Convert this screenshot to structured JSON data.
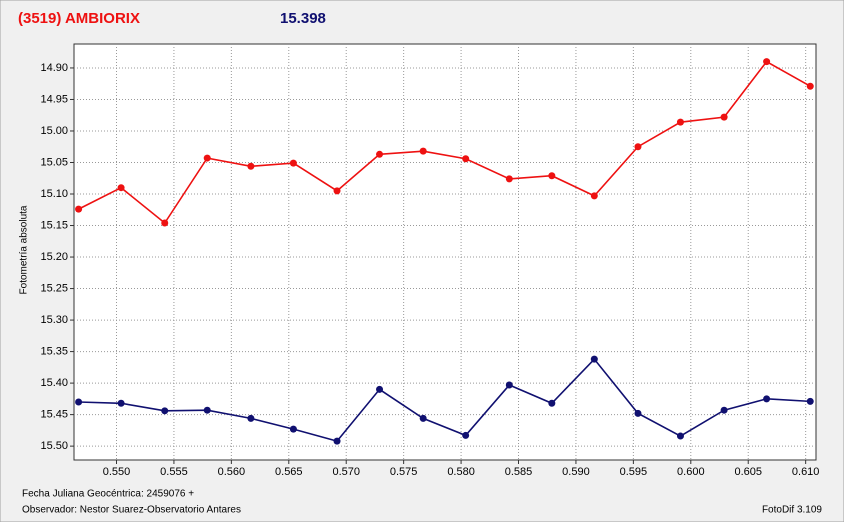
{
  "chart_data": {
    "type": "line",
    "title": "(3519) AMBIORIX",
    "subtitle": "15.398",
    "y_label": "Fotometría absoluta",
    "footer_date": "Fecha Juliana Geocéntrica: 2459076 +",
    "footer_observer": "Observador: Nestor Suarez-Observatorio Antares",
    "footer_software": "FotoDif 3.109",
    "x": [
      0.5467,
      0.5504,
      0.5542,
      0.5579,
      0.5617,
      0.5654,
      0.5692,
      0.5729,
      0.5767,
      0.5804,
      0.5842,
      0.5879,
      0.5916,
      0.5954,
      0.5991,
      0.6029,
      0.6066,
      0.6104
    ],
    "series": [
      {
        "color": "#ee1111",
        "values": [
          15.124,
          15.09,
          15.146,
          15.043,
          15.056,
          15.051,
          15.095,
          15.037,
          15.032,
          15.044,
          15.076,
          15.071,
          15.103,
          15.025,
          14.986,
          14.978,
          14.89,
          14.929
        ]
      },
      {
        "color": "#101070",
        "values": [
          15.43,
          15.432,
          15.444,
          15.443,
          15.456,
          15.473,
          15.492,
          15.41,
          15.456,
          15.483,
          15.403,
          15.432,
          15.362,
          15.448,
          15.484,
          15.443,
          15.425,
          15.429
        ]
      }
    ],
    "xlim": [
      0.5463,
      0.6109
    ],
    "ylim": [
      15.522,
      14.862
    ],
    "xticks": [
      {
        "value": 0.55,
        "label": "0.550"
      },
      0.555,
      {
        "value": 0.56,
        "label": "0.560"
      },
      0.565,
      {
        "value": 0.57,
        "label": "0.570"
      },
      0.575,
      {
        "value": 0.58,
        "label": "0.580"
      },
      0.585,
      {
        "value": 0.59,
        "label": "0.590"
      },
      0.595,
      {
        "value": 0.6,
        "label": "0.600"
      },
      0.605,
      {
        "value": 0.61,
        "label": "0.610"
      }
    ],
    "yticks": [
      {
        "value": 14.9,
        "label": "14.90"
      },
      14.95,
      {
        "value": 15.0,
        "label": "15.00"
      },
      15.05,
      {
        "value": 15.1,
        "label": "15.10"
      },
      15.15,
      {
        "value": 15.2,
        "label": "15.20"
      },
      15.25,
      {
        "value": 15.3,
        "label": "15.30"
      },
      15.35,
      {
        "value": 15.4,
        "label": "15.40"
      },
      15.45,
      {
        "value": 15.5,
        "label": "15.50"
      }
    ],
    "grid": true
  }
}
